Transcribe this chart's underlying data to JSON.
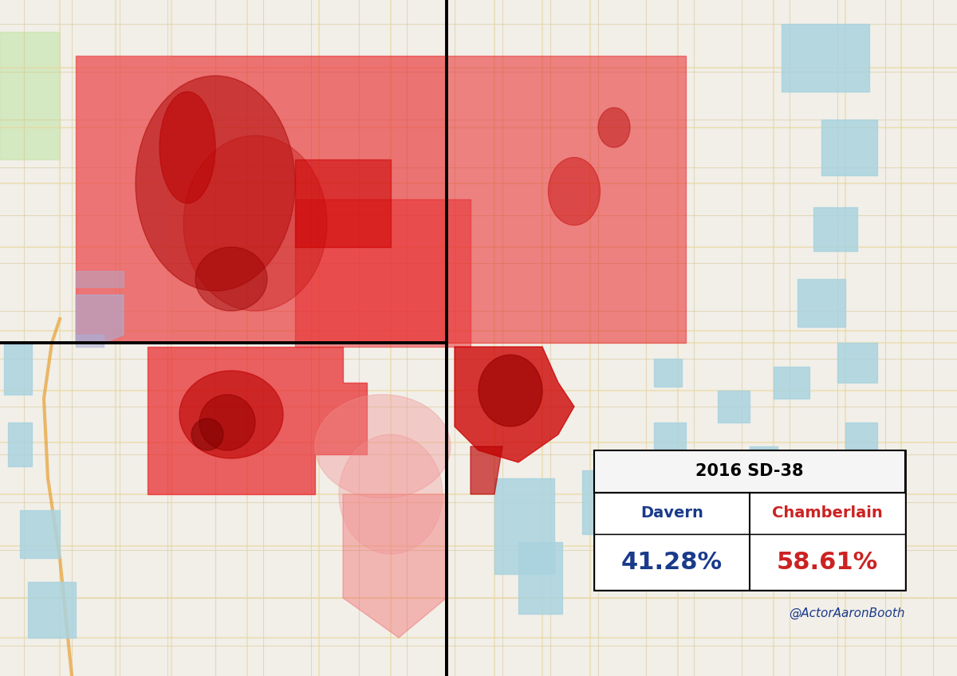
{
  "title": "2016 SD-38",
  "candidate1": "Davern",
  "candidate2": "Chamberlain",
  "pct1": "41.28%",
  "pct2": "58.61%",
  "color1": "#1a3a8a",
  "color2": "#cc2222",
  "attribution": "@ActorAaronBooth",
  "map_bg": "#f2efe9",
  "road_color": "#ffffff",
  "road_outline": "#d4c89a",
  "water_color": "#aad3df",
  "green_color": "#c8e6b0",
  "red_base": "#e8272a",
  "red_dark": "#aa0000",
  "red_vdark": "#770000",
  "red_light": "#f08080",
  "blue_patch": "#aab0d8",
  "boundary_color": "#000000"
}
